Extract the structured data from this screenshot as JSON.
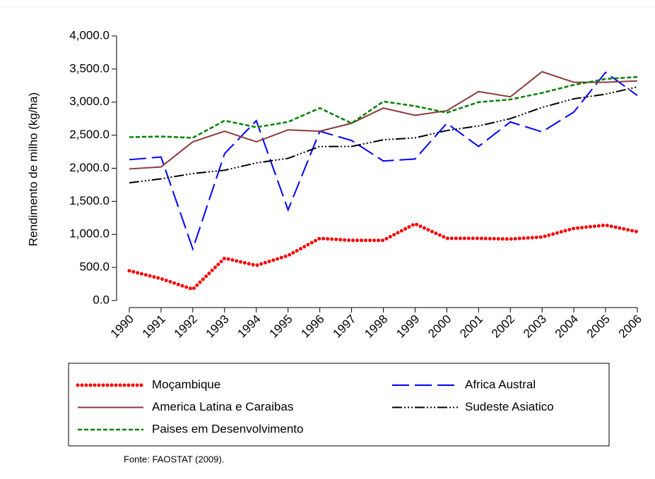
{
  "chart_data": {
    "type": "line",
    "y_label": "Rendimento de milho (kg/ha)",
    "source": "Fonte: FAOSTAT (2009).",
    "categories": [
      "1990",
      "1991",
      "1992",
      "1993",
      "1994",
      "1995",
      "1996",
      "1997",
      "1998",
      "1999",
      "2000",
      "2001",
      "2002",
      "2003",
      "2004",
      "2005",
      "2006"
    ],
    "series": [
      {
        "name": "Moçambique",
        "color": "#ff0000",
        "dash": "0 6",
        "width": 5,
        "values": [
          450,
          330,
          170,
          640,
          530,
          680,
          940,
          910,
          910,
          1160,
          940,
          940,
          930,
          960,
          1090,
          1140,
          1040
        ]
      },
      {
        "name": "Africa Austral",
        "color": "#0000ff",
        "dash": "24 8",
        "width": 2,
        "values": [
          2130,
          2170,
          780,
          2220,
          2720,
          1370,
          2560,
          2420,
          2110,
          2140,
          2680,
          2330,
          2700,
          2550,
          2850,
          3450,
          3100
        ]
      },
      {
        "name": "America Latina e Caraibas",
        "color": "#8b3a3a",
        "dash": "none",
        "width": 2,
        "values": [
          1990,
          2020,
          2400,
          2560,
          2400,
          2580,
          2560,
          2680,
          2910,
          2800,
          2870,
          3160,
          3080,
          3460,
          3300,
          3300,
          3320
        ]
      },
      {
        "name": "Sudeste Asiatico",
        "color": "#000000",
        "dash": "14 3 2 3 2 3 2 3",
        "width": 2,
        "values": [
          1780,
          1840,
          1920,
          1970,
          2080,
          2150,
          2330,
          2330,
          2430,
          2460,
          2570,
          2640,
          2750,
          2920,
          3050,
          3120,
          3230
        ]
      },
      {
        "name": "Paises em Desenvolvimento",
        "color": "#008000",
        "dash": "6 3",
        "width": 2.5,
        "values": [
          2470,
          2480,
          2460,
          2720,
          2620,
          2700,
          2910,
          2680,
          3010,
          2940,
          2840,
          3000,
          3040,
          3140,
          3260,
          3350,
          3380
        ]
      }
    ],
    "ylim": [
      0,
      4000
    ],
    "yticks": [
      {
        "value": 0,
        "label": "0.0"
      },
      {
        "value": 500,
        "label": "500.0"
      },
      {
        "value": 1000,
        "label": "1,000.0"
      },
      {
        "value": 1500,
        "label": "1,500.0"
      },
      {
        "value": 2000,
        "label": "2,000.0"
      },
      {
        "value": 2500,
        "label": "2,500.0"
      },
      {
        "value": 3000,
        "label": "3,000.0"
      },
      {
        "value": 3500,
        "label": "3,500.0"
      },
      {
        "value": 4000,
        "label": "4,000.0"
      }
    ],
    "legend": "bottom"
  }
}
